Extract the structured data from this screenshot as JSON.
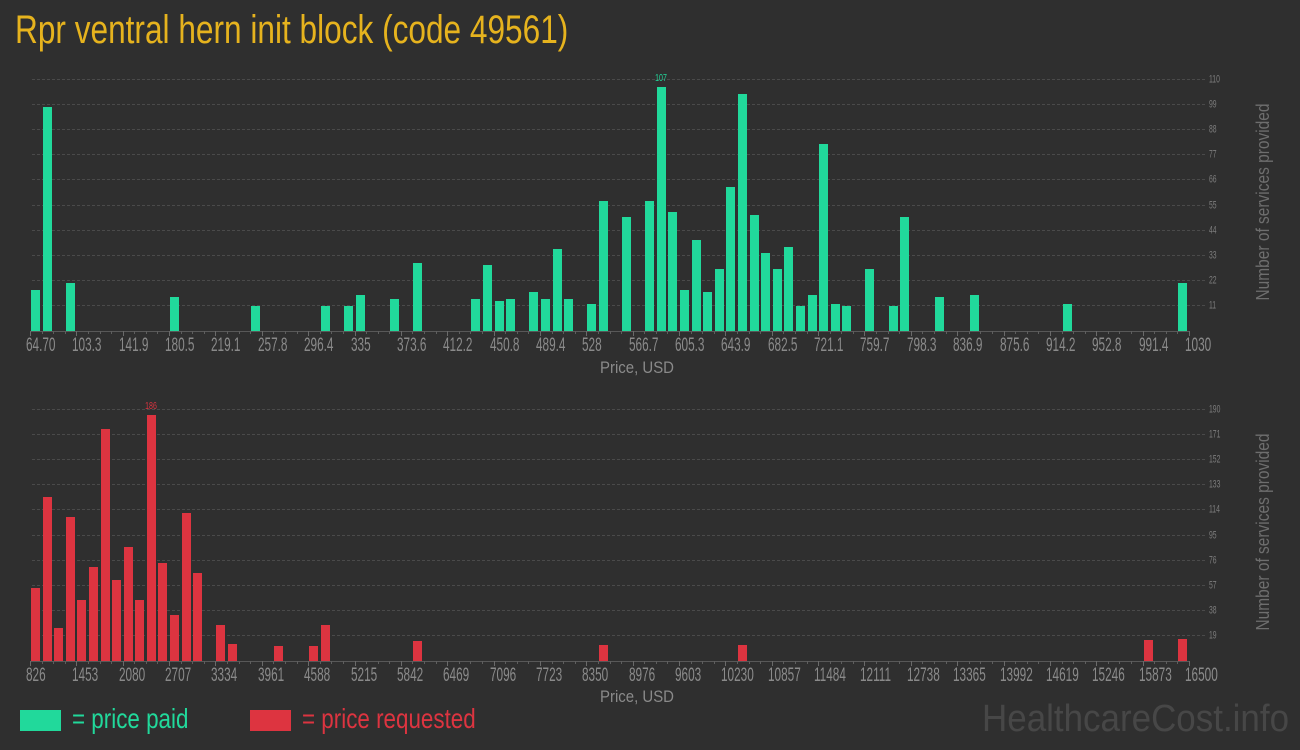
{
  "title": "Rpr ventral hern init block (code 49561)",
  "colors": {
    "background": "#2f2f2f",
    "title": "#e6b31e",
    "price_paid": "#21d99b",
    "price_requested": "#dd3440"
  },
  "legend": {
    "items": [
      {
        "label": "= price paid",
        "color": "#21d99b"
      },
      {
        "label": "= price requested",
        "color": "#dd3440"
      }
    ]
  },
  "watermark": "HealthcareCost.info",
  "chart_data": [
    {
      "type": "bar",
      "title": "",
      "series_name": "price paid",
      "color": "#21d99b",
      "xlabel": "Price, USD",
      "ylabel": "Number of services provided",
      "xlim": [
        64.7,
        1030
      ],
      "ylim": [
        0,
        110
      ],
      "bin_count": 100,
      "bin_width": 9.653,
      "grid": true,
      "peak_label": "107",
      "xticks": [
        "64.70",
        "103.3",
        "141.9",
        "180.5",
        "219.1",
        "257.8",
        "296.4",
        "335",
        "373.6",
        "412.2",
        "450.8",
        "489.4",
        "528",
        "566.7",
        "605.3",
        "643.9",
        "682.5",
        "721.1",
        "759.7",
        "798.3",
        "836.9",
        "875.6",
        "914.2",
        "952.8",
        "991.4",
        "1030"
      ],
      "yticks": [
        "11",
        "22",
        "33",
        "44",
        "55",
        "66",
        "77",
        "88",
        "99",
        "110"
      ],
      "bars": [
        {
          "bin": 0,
          "x": 64.7,
          "value": 18
        },
        {
          "bin": 1,
          "x": 74.35,
          "value": 98
        },
        {
          "bin": 3,
          "x": 93.66,
          "value": 21
        },
        {
          "bin": 12,
          "x": 180.54,
          "value": 15
        },
        {
          "bin": 19,
          "x": 248.11,
          "value": 11
        },
        {
          "bin": 25,
          "x": 306.03,
          "value": 11
        },
        {
          "bin": 27,
          "x": 325.33,
          "value": 11
        },
        {
          "bin": 28,
          "x": 334.98,
          "value": 16
        },
        {
          "bin": 31,
          "x": 363.94,
          "value": 14
        },
        {
          "bin": 33,
          "x": 383.25,
          "value": 30
        },
        {
          "bin": 38,
          "x": 431.51,
          "value": 14
        },
        {
          "bin": 39,
          "x": 441.17,
          "value": 29
        },
        {
          "bin": 40,
          "x": 450.82,
          "value": 13
        },
        {
          "bin": 41,
          "x": 460.47,
          "value": 14
        },
        {
          "bin": 43,
          "x": 479.78,
          "value": 17
        },
        {
          "bin": 44,
          "x": 489.43,
          "value": 14
        },
        {
          "bin": 45,
          "x": 499.09,
          "value": 36
        },
        {
          "bin": 46,
          "x": 508.74,
          "value": 14
        },
        {
          "bin": 48,
          "x": 528.04,
          "value": 12
        },
        {
          "bin": 49,
          "x": 537.7,
          "value": 57
        },
        {
          "bin": 51,
          "x": 557.0,
          "value": 50
        },
        {
          "bin": 53,
          "x": 576.31,
          "value": 57
        },
        {
          "bin": 54,
          "x": 585.96,
          "value": 107
        },
        {
          "bin": 55,
          "x": 595.62,
          "value": 52
        },
        {
          "bin": 56,
          "x": 605.27,
          "value": 18
        },
        {
          "bin": 57,
          "x": 614.92,
          "value": 40
        },
        {
          "bin": 58,
          "x": 624.57,
          "value": 17
        },
        {
          "bin": 59,
          "x": 634.23,
          "value": 27
        },
        {
          "bin": 60,
          "x": 643.88,
          "value": 63
        },
        {
          "bin": 61,
          "x": 653.53,
          "value": 104
        },
        {
          "bin": 62,
          "x": 663.19,
          "value": 51
        },
        {
          "bin": 63,
          "x": 672.84,
          "value": 34
        },
        {
          "bin": 64,
          "x": 682.49,
          "value": 27
        },
        {
          "bin": 65,
          "x": 692.14,
          "value": 37
        },
        {
          "bin": 66,
          "x": 701.8,
          "value": 11
        },
        {
          "bin": 67,
          "x": 711.45,
          "value": 16
        },
        {
          "bin": 68,
          "x": 721.1,
          "value": 82
        },
        {
          "bin": 69,
          "x": 730.76,
          "value": 12
        },
        {
          "bin": 70,
          "x": 740.41,
          "value": 11
        },
        {
          "bin": 72,
          "x": 759.72,
          "value": 27
        },
        {
          "bin": 74,
          "x": 779.02,
          "value": 11
        },
        {
          "bin": 75,
          "x": 788.68,
          "value": 50
        },
        {
          "bin": 78,
          "x": 817.63,
          "value": 15
        },
        {
          "bin": 81,
          "x": 846.59,
          "value": 16
        },
        {
          "bin": 89,
          "x": 923.82,
          "value": 12
        },
        {
          "bin": 99,
          "x": 1020.35,
          "value": 21
        }
      ]
    },
    {
      "type": "bar",
      "title": "",
      "series_name": "price requested",
      "color": "#dd3440",
      "xlabel": "Price, USD",
      "ylabel": "Number of services provided",
      "xlim": [
        826,
        16500
      ],
      "ylim": [
        0,
        190
      ],
      "bin_count": 100,
      "bin_width": 156.74,
      "grid": true,
      "peak_label": "186",
      "xticks": [
        "826",
        "1453",
        "2080",
        "2707",
        "3334",
        "3961",
        "4588",
        "5215",
        "5842",
        "6469",
        "7096",
        "7723",
        "8350",
        "8976",
        "9603",
        "10230",
        "10857",
        "11484",
        "12111",
        "12738",
        "13365",
        "13992",
        "14619",
        "15246",
        "15873",
        "16500"
      ],
      "yticks": [
        "19",
        "38",
        "57",
        "76",
        "95",
        "114",
        "133",
        "152",
        "171",
        "190"
      ],
      "bars": [
        {
          "bin": 0,
          "x": 826.0,
          "value": 55
        },
        {
          "bin": 1,
          "x": 982.7,
          "value": 124
        },
        {
          "bin": 2,
          "x": 1139.5,
          "value": 25
        },
        {
          "bin": 3,
          "x": 1296.2,
          "value": 109
        },
        {
          "bin": 4,
          "x": 1453.0,
          "value": 46
        },
        {
          "bin": 5,
          "x": 1609.7,
          "value": 71
        },
        {
          "bin": 6,
          "x": 1766.4,
          "value": 176
        },
        {
          "bin": 7,
          "x": 1923.2,
          "value": 61
        },
        {
          "bin": 8,
          "x": 2079.9,
          "value": 86
        },
        {
          "bin": 9,
          "x": 2236.7,
          "value": 46
        },
        {
          "bin": 10,
          "x": 2393.4,
          "value": 186
        },
        {
          "bin": 11,
          "x": 2550.1,
          "value": 74
        },
        {
          "bin": 12,
          "x": 2706.9,
          "value": 35
        },
        {
          "bin": 13,
          "x": 2863.6,
          "value": 112
        },
        {
          "bin": 14,
          "x": 3020.4,
          "value": 67
        },
        {
          "bin": 16,
          "x": 3333.8,
          "value": 27
        },
        {
          "bin": 17,
          "x": 3490.6,
          "value": 13
        },
        {
          "bin": 21,
          "x": 4117.5,
          "value": 11
        },
        {
          "bin": 24,
          "x": 4587.8,
          "value": 11
        },
        {
          "bin": 25,
          "x": 4744.5,
          "value": 27
        },
        {
          "bin": 33,
          "x": 5998.4,
          "value": 15
        },
        {
          "bin": 49,
          "x": 8506.3,
          "value": 12
        },
        {
          "bin": 61,
          "x": 10387.1,
          "value": 12
        },
        {
          "bin": 96,
          "x": 15873.0,
          "value": 16
        },
        {
          "bin": 99,
          "x": 16343.3,
          "value": 17
        }
      ]
    }
  ]
}
